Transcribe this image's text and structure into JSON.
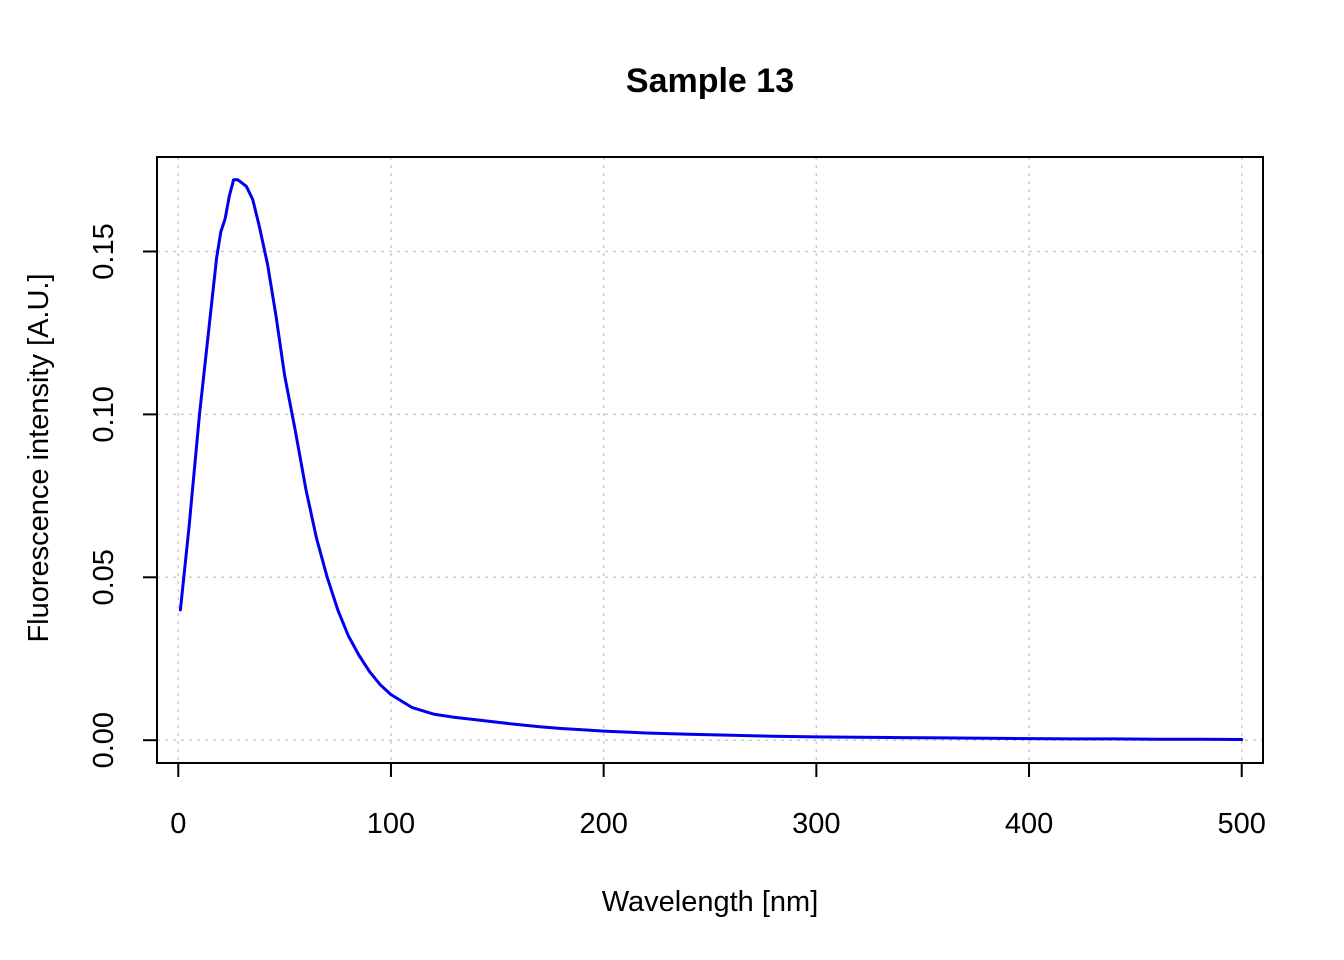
{
  "chart_data": {
    "type": "line",
    "title": "Sample 13",
    "xlabel": "Wavelength [nm]",
    "ylabel": "Fluorescence intensity [A.U.]",
    "xlim": [
      -10,
      510
    ],
    "ylim": [
      -0.007,
      0.179
    ],
    "xticks": [
      0,
      100,
      200,
      300,
      400,
      500
    ],
    "xtick_labels": [
      "0",
      "100",
      "200",
      "300",
      "400",
      "500"
    ],
    "yticks": [
      0.0,
      0.05,
      0.1,
      0.15
    ],
    "ytick_labels": [
      "0.00",
      "0.05",
      "0.10",
      "0.15"
    ],
    "grid": true,
    "colors": {
      "series": "#0000ee",
      "grid": "#cccccc",
      "frame": "#000000"
    },
    "series": [
      {
        "x": [
          1,
          5,
          10,
          15,
          18,
          20,
          22,
          24,
          26,
          28,
          30,
          32,
          35,
          38,
          42,
          46,
          50,
          55,
          60,
          65,
          70,
          75,
          80,
          85,
          90,
          95,
          100,
          110,
          120,
          130,
          140,
          150,
          160,
          170,
          180,
          190,
          200,
          220,
          240,
          260,
          280,
          300,
          320,
          340,
          360,
          380,
          400,
          420,
          440,
          460,
          480,
          500
        ],
        "y": [
          0.04,
          0.065,
          0.1,
          0.13,
          0.148,
          0.156,
          0.16,
          0.167,
          0.172,
          0.172,
          0.171,
          0.17,
          0.166,
          0.158,
          0.146,
          0.13,
          0.112,
          0.095,
          0.077,
          0.062,
          0.05,
          0.04,
          0.032,
          0.026,
          0.021,
          0.017,
          0.014,
          0.01,
          0.008,
          0.007,
          0.0063,
          0.0055,
          0.0048,
          0.0041,
          0.0036,
          0.0032,
          0.0028,
          0.0022,
          0.0018,
          0.0015,
          0.0012,
          0.001,
          0.0009,
          0.0008,
          0.0007,
          0.0006,
          0.0005,
          0.0004,
          0.0004,
          0.0003,
          0.0003,
          0.0002
        ]
      }
    ]
  }
}
